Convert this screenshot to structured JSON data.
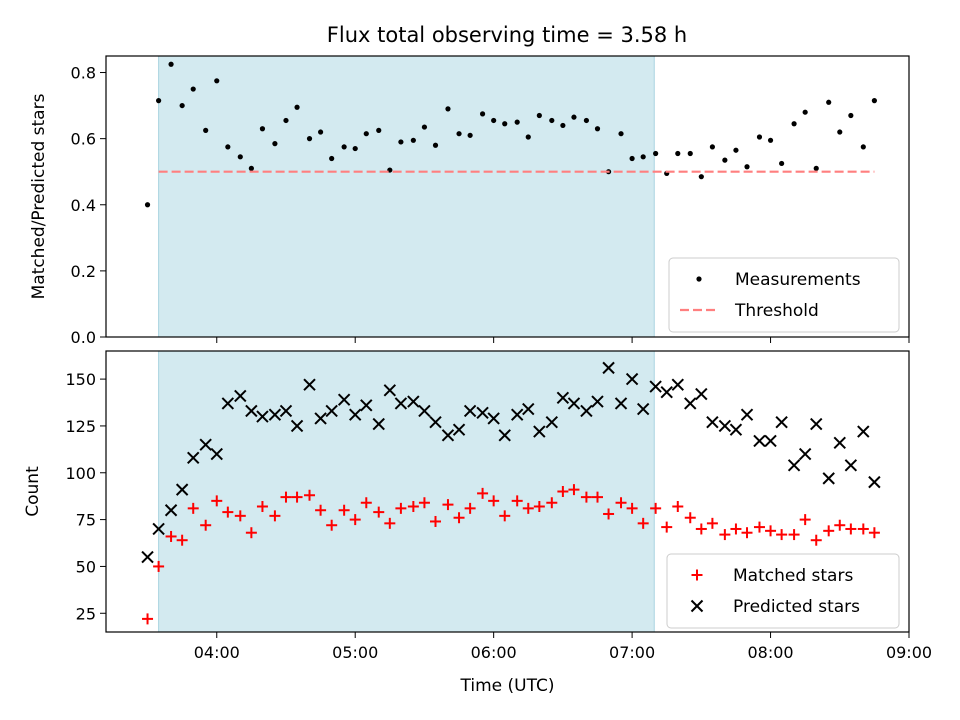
{
  "title": "Flux total observing time = 3.58 h",
  "chart_data": [
    {
      "type": "scatter",
      "panel": "top",
      "ylabel": "Matched/Predicted stars",
      "xlabel": "",
      "x_unit": "hours UTC",
      "xlim": [
        3.2,
        9.0
      ],
      "ylim": [
        0,
        0.85
      ],
      "yticks": [
        0.0,
        0.2,
        0.4,
        0.6,
        0.8
      ],
      "ytick_labels": [
        "0.0",
        "0.2",
        "0.4",
        "0.6",
        "0.8"
      ],
      "shaded_span": [
        3.58,
        7.16
      ],
      "shade_color": "#d3eaf0",
      "legend_position": "lower right",
      "series": [
        {
          "name": "Measurements",
          "marker": "dot",
          "color": "#000000",
          "points": [
            [
              3.5,
              0.4
            ],
            [
              3.58,
              0.715
            ],
            [
              3.67,
              0.825
            ],
            [
              3.75,
              0.7
            ],
            [
              3.83,
              0.75
            ],
            [
              3.92,
              0.625
            ],
            [
              4.0,
              0.775
            ],
            [
              4.08,
              0.575
            ],
            [
              4.17,
              0.545
            ],
            [
              4.25,
              0.51
            ],
            [
              4.33,
              0.63
            ],
            [
              4.42,
              0.585
            ],
            [
              4.5,
              0.655
            ],
            [
              4.58,
              0.695
            ],
            [
              4.67,
              0.6
            ],
            [
              4.75,
              0.62
            ],
            [
              4.83,
              0.54
            ],
            [
              4.92,
              0.575
            ],
            [
              5.0,
              0.57
            ],
            [
              5.08,
              0.615
            ],
            [
              5.17,
              0.625
            ],
            [
              5.25,
              0.505
            ],
            [
              5.33,
              0.59
            ],
            [
              5.42,
              0.595
            ],
            [
              5.5,
              0.635
            ],
            [
              5.58,
              0.58
            ],
            [
              5.67,
              0.69
            ],
            [
              5.75,
              0.615
            ],
            [
              5.83,
              0.61
            ],
            [
              5.92,
              0.675
            ],
            [
              6.0,
              0.655
            ],
            [
              6.08,
              0.645
            ],
            [
              6.17,
              0.65
            ],
            [
              6.25,
              0.605
            ],
            [
              6.33,
              0.67
            ],
            [
              6.42,
              0.655
            ],
            [
              6.5,
              0.64
            ],
            [
              6.58,
              0.665
            ],
            [
              6.67,
              0.655
            ],
            [
              6.75,
              0.63
            ],
            [
              6.83,
              0.5
            ],
            [
              6.92,
              0.615
            ],
            [
              7.0,
              0.54
            ],
            [
              7.08,
              0.545
            ],
            [
              7.17,
              0.555
            ],
            [
              7.25,
              0.495
            ],
            [
              7.33,
              0.555
            ],
            [
              7.42,
              0.555
            ],
            [
              7.5,
              0.485
            ],
            [
              7.58,
              0.575
            ],
            [
              7.67,
              0.535
            ],
            [
              7.75,
              0.565
            ],
            [
              7.83,
              0.515
            ],
            [
              7.92,
              0.605
            ],
            [
              8.0,
              0.595
            ],
            [
              8.08,
              0.525
            ],
            [
              8.17,
              0.645
            ],
            [
              8.25,
              0.68
            ],
            [
              8.33,
              0.51
            ],
            [
              8.42,
              0.71
            ],
            [
              8.5,
              0.62
            ],
            [
              8.58,
              0.67
            ],
            [
              8.67,
              0.575
            ],
            [
              8.75,
              0.715
            ]
          ]
        },
        {
          "name": "Threshold",
          "line": "dashed",
          "color": "#ff7f7f",
          "points": [
            [
              3.58,
              0.5
            ],
            [
              8.75,
              0.5
            ]
          ]
        }
      ]
    },
    {
      "type": "scatter",
      "panel": "bottom",
      "xlabel": "Time (UTC)",
      "ylabel": "Count",
      "x_unit": "hours UTC",
      "xlim": [
        3.2,
        9.0
      ],
      "ylim": [
        15,
        165
      ],
      "xticks": [
        4,
        5,
        6,
        7,
        8,
        9
      ],
      "xtick_labels": [
        "04:00",
        "05:00",
        "06:00",
        "07:00",
        "08:00",
        "09:00"
      ],
      "yticks": [
        25,
        50,
        75,
        100,
        125,
        150
      ],
      "ytick_labels": [
        "25",
        "50",
        "75",
        "100",
        "125",
        "150"
      ],
      "shaded_span": [
        3.58,
        7.16
      ],
      "shade_color": "#d3eaf0",
      "legend_position": "lower right",
      "series": [
        {
          "name": "Matched stars",
          "marker": "plus",
          "color": "#ff0000",
          "points": [
            [
              3.5,
              22
            ],
            [
              3.58,
              50
            ],
            [
              3.67,
              66
            ],
            [
              3.75,
              64
            ],
            [
              3.83,
              81
            ],
            [
              3.92,
              72
            ],
            [
              4.0,
              85
            ],
            [
              4.08,
              79
            ],
            [
              4.17,
              77
            ],
            [
              4.25,
              68
            ],
            [
              4.33,
              82
            ],
            [
              4.42,
              77
            ],
            [
              4.5,
              87
            ],
            [
              4.58,
              87
            ],
            [
              4.67,
              88
            ],
            [
              4.75,
              80
            ],
            [
              4.83,
              72
            ],
            [
              4.92,
              80
            ],
            [
              5.0,
              75
            ],
            [
              5.08,
              84
            ],
            [
              5.17,
              79
            ],
            [
              5.25,
              73
            ],
            [
              5.33,
              81
            ],
            [
              5.42,
              82
            ],
            [
              5.5,
              84
            ],
            [
              5.58,
              74
            ],
            [
              5.67,
              83
            ],
            [
              5.75,
              76
            ],
            [
              5.83,
              81
            ],
            [
              5.92,
              89
            ],
            [
              6.0,
              85
            ],
            [
              6.08,
              77
            ],
            [
              6.17,
              85
            ],
            [
              6.25,
              81
            ],
            [
              6.33,
              82
            ],
            [
              6.42,
              84
            ],
            [
              6.5,
              90
            ],
            [
              6.58,
              91
            ],
            [
              6.67,
              87
            ],
            [
              6.75,
              87
            ],
            [
              6.83,
              78
            ],
            [
              6.92,
              84
            ],
            [
              7.0,
              81
            ],
            [
              7.08,
              73
            ],
            [
              7.17,
              81
            ],
            [
              7.25,
              71
            ],
            [
              7.33,
              82
            ],
            [
              7.42,
              76
            ],
            [
              7.5,
              70
            ],
            [
              7.58,
              73
            ],
            [
              7.67,
              67
            ],
            [
              7.75,
              70
            ],
            [
              7.83,
              68
            ],
            [
              7.92,
              71
            ],
            [
              8.0,
              69
            ],
            [
              8.08,
              67
            ],
            [
              8.17,
              67
            ],
            [
              8.25,
              75
            ],
            [
              8.33,
              64
            ],
            [
              8.42,
              69
            ],
            [
              8.5,
              72
            ],
            [
              8.58,
              70
            ],
            [
              8.67,
              70
            ],
            [
              8.75,
              68
            ]
          ]
        },
        {
          "name": "Predicted stars",
          "marker": "x",
          "color": "#000000",
          "points": [
            [
              3.5,
              55
            ],
            [
              3.58,
              70
            ],
            [
              3.67,
              80
            ],
            [
              3.75,
              91
            ],
            [
              3.83,
              108
            ],
            [
              3.92,
              115
            ],
            [
              4.0,
              110
            ],
            [
              4.08,
              137
            ],
            [
              4.17,
              141
            ],
            [
              4.25,
              133
            ],
            [
              4.33,
              130
            ],
            [
              4.42,
              131
            ],
            [
              4.5,
              133
            ],
            [
              4.58,
              125
            ],
            [
              4.67,
              147
            ],
            [
              4.75,
              129
            ],
            [
              4.83,
              133
            ],
            [
              4.92,
              139
            ],
            [
              5.0,
              131
            ],
            [
              5.08,
              136
            ],
            [
              5.17,
              126
            ],
            [
              5.25,
              144
            ],
            [
              5.33,
              137
            ],
            [
              5.42,
              138
            ],
            [
              5.5,
              133
            ],
            [
              5.58,
              127
            ],
            [
              5.67,
              120
            ],
            [
              5.75,
              123
            ],
            [
              5.83,
              133
            ],
            [
              5.92,
              132
            ],
            [
              6.0,
              129
            ],
            [
              6.08,
              120
            ],
            [
              6.17,
              131
            ],
            [
              6.25,
              134
            ],
            [
              6.33,
              122
            ],
            [
              6.42,
              127
            ],
            [
              6.5,
              140
            ],
            [
              6.58,
              137
            ],
            [
              6.67,
              133
            ],
            [
              6.75,
              138
            ],
            [
              6.83,
              156
            ],
            [
              6.92,
              137
            ],
            [
              7.0,
              150
            ],
            [
              7.08,
              134
            ],
            [
              7.17,
              146
            ],
            [
              7.25,
              143
            ],
            [
              7.33,
              147
            ],
            [
              7.42,
              137
            ],
            [
              7.5,
              142
            ],
            [
              7.58,
              127
            ],
            [
              7.67,
              125
            ],
            [
              7.75,
              123
            ],
            [
              7.83,
              131
            ],
            [
              7.92,
              117
            ],
            [
              8.0,
              117
            ],
            [
              8.08,
              127
            ],
            [
              8.17,
              104
            ],
            [
              8.25,
              110
            ],
            [
              8.33,
              126
            ],
            [
              8.42,
              97
            ],
            [
              8.5,
              116
            ],
            [
              8.58,
              104
            ],
            [
              8.67,
              122
            ],
            [
              8.75,
              95
            ]
          ]
        }
      ]
    }
  ]
}
